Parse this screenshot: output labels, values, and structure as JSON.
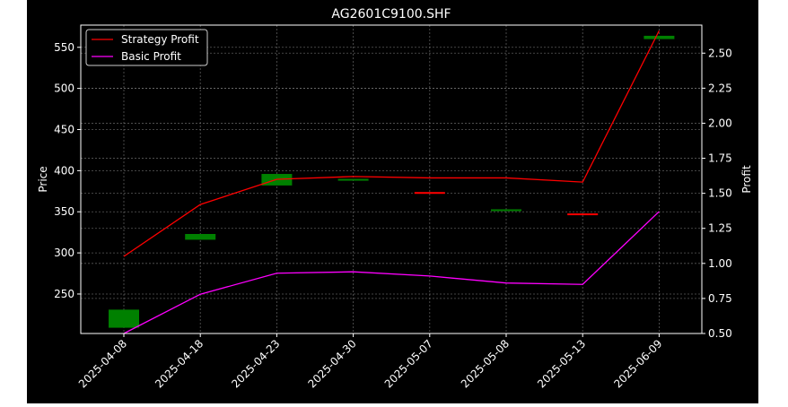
{
  "chart_data": {
    "type": "candlestick+line",
    "title": "AG2601C9100.SHF",
    "xlabel": "",
    "ylabel_left": "Price",
    "ylabel_right": "Profit",
    "categories": [
      "2025-04-08",
      "2025-04-18",
      "2025-04-23",
      "2025-04-30",
      "2025-05-07",
      "2025-05-08",
      "2025-05-13",
      "2025-06-09"
    ],
    "ylim_left": [
      202,
      577
    ],
    "ylim_right": [
      0.5,
      2.7
    ],
    "yticks_left": [
      250,
      300,
      350,
      400,
      450,
      500,
      550
    ],
    "yticks_right": [
      "0.50",
      "0.75",
      "1.00",
      "1.25",
      "1.50",
      "1.75",
      "2.00",
      "2.25",
      "2.50"
    ],
    "candles": [
      {
        "date": "2025-04-08",
        "open": 209,
        "close": 231,
        "direction": "up"
      },
      {
        "date": "2025-04-18",
        "open": 316,
        "close": 323,
        "direction": "up"
      },
      {
        "date": "2025-04-23",
        "open": 382,
        "close": 396,
        "direction": "up"
      },
      {
        "date": "2025-04-30",
        "open": 388,
        "close": 390,
        "direction": "up"
      },
      {
        "date": "2025-05-07",
        "open": 374,
        "close": 373,
        "direction": "down"
      },
      {
        "date": "2025-05-08",
        "open": 351,
        "close": 353,
        "direction": "up"
      },
      {
        "date": "2025-05-13",
        "open": 348,
        "close": 347,
        "direction": "down"
      },
      {
        "date": "2025-06-09",
        "open": 560,
        "close": 564,
        "direction": "up"
      }
    ],
    "series": [
      {
        "name": "Strategy Profit",
        "color": "#ff0000",
        "values": [
          1.05,
          1.42,
          1.6,
          1.62,
          1.61,
          1.61,
          1.58,
          2.66
        ]
      },
      {
        "name": "Basic Profit",
        "color": "#ff00ff",
        "values": [
          0.5,
          0.78,
          0.93,
          0.94,
          0.91,
          0.86,
          0.85,
          1.37
        ]
      }
    ],
    "candle_colors": {
      "up": "#008000",
      "down": "#ff0000"
    },
    "grid": true,
    "legend_position": "top-left",
    "background": "#000000"
  }
}
